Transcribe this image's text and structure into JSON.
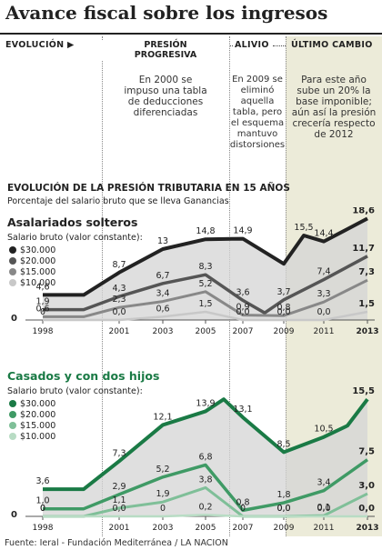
{
  "title": "Avance fiscal sobre los ingresos",
  "header": {
    "evolucion": "EVOLUCIÓN",
    "presion": "PRESIÓN\nPROGRESIVA",
    "alivio": "ALIVIO",
    "ultimo": "ÚLTIMO CAMBIO",
    "note_2000": "En 2000 se\nimpuso una tabla\nde deducciones\ndiferenciadas",
    "note_2009": "En 2009 se\neliminó aquella\ntabla, pero\nel esquema\nmantuvo\ndistorsiones",
    "note_2013": "Para este año\nsube un 20% la\nbase imponible;\naún así la presión\ncrecería respecto\nde 2012"
  },
  "section_title": "EVOLUCIÓN DE LA PRESIÓN TRIBUTARIA EN 15 AÑOS",
  "section_subtitle": "Porcentaje del salario bruto que se lleva Ganancias",
  "footer": "Fuente: Ieral - Fundación Mediterránea / LA NACION",
  "colors": {
    "black": "#222222",
    "dark_gray": "#555555",
    "mid_gray": "#888888",
    "light_gray": "#c8c8c8",
    "dark_green": "#1a7a45",
    "mid_green": "#3f9a65",
    "light_green": "#7fbf98",
    "pale_green": "#b8dcc4",
    "band_highlight": "#ecebd9",
    "area_fill": "#d4d4d4"
  },
  "chart_data": [
    {
      "type": "line",
      "title": "Asalariados solteros",
      "legend_title": "Salario bruto (valor constante):",
      "x": [
        1998,
        1999,
        2001,
        2003,
        2005,
        2007,
        2009,
        2011,
        2013
      ],
      "x_tick_labels": [
        "1998",
        "2001",
        "2003",
        "2005",
        "2007",
        "2009",
        "2011",
        "2013"
      ],
      "y_axis_label": "0",
      "ylim": [
        0,
        19
      ],
      "series": [
        {
          "name": "$30.000",
          "color": "#222222",
          "values": [
            4.6,
            4.6,
            8.7,
            13.0,
            14.8,
            14.9,
            10.3,
            15.5,
            14.4,
            18.6
          ],
          "x": [
            1998,
            1999,
            2001,
            2003,
            2005,
            2007,
            2009,
            2010,
            2011,
            2013
          ],
          "labels": [
            "4,6",
            "",
            "8,7",
            "13",
            "14,8",
            "14,9",
            "",
            "15,5",
            "14,4",
            "18,6"
          ]
        },
        {
          "name": "$20.000",
          "color": "#555555",
          "values": [
            1.9,
            1.9,
            4.3,
            6.7,
            8.3,
            3.6,
            1.3,
            3.7,
            7.4,
            11.7
          ],
          "x": [
            1998,
            1999,
            2001,
            2003,
            2005,
            2007,
            2008,
            2009,
            2011,
            2013
          ],
          "labels": [
            "1,9",
            "",
            "4,3",
            "6,7",
            "8,3",
            "3,6",
            "",
            "3,7",
            "7,4",
            "11,7"
          ]
        },
        {
          "name": "$15.000",
          "color": "#888888",
          "values": [
            0.6,
            0.6,
            2.3,
            3.4,
            5.2,
            0.9,
            0.8,
            3.3,
            7.3
          ],
          "x": [
            1998,
            1999,
            2001,
            2003,
            2005,
            2007,
            2009,
            2011,
            2013
          ],
          "labels": [
            "0,6",
            "",
            "2,3",
            "3,4",
            "5,2",
            "0,9",
            "0,8",
            "3,3",
            "7,3"
          ]
        },
        {
          "name": "$10.000",
          "color": "#c8c8c8",
          "values": [
            0,
            0,
            0.0,
            0.6,
            1.5,
            0.0,
            0.0,
            0.0,
            1.5
          ],
          "x": [
            1998,
            1999,
            2001,
            2003,
            2005,
            2007,
            2009,
            2011,
            2013
          ],
          "labels": [
            "0",
            "",
            "0,0",
            "0,6",
            "1,5",
            "0,0",
            "0,0",
            "0,0",
            "1,5"
          ]
        }
      ]
    },
    {
      "type": "line",
      "title": "Casados y con dos hijos",
      "legend_title": "Salario bruto (valor constante):",
      "x": [
        1998,
        1999,
        2001,
        2003,
        2005,
        2007,
        2009,
        2011,
        2013
      ],
      "x_tick_labels": [
        "1998",
        "2001",
        "2003",
        "2005",
        "2007",
        "2009",
        "2011",
        "2013"
      ],
      "y_axis_label": "0",
      "ylim": [
        0,
        16
      ],
      "series": [
        {
          "name": "$30.000",
          "color": "#1a7a45",
          "values": [
            3.6,
            3.6,
            7.3,
            12.1,
            13.9,
            15.5,
            13.1,
            8.5,
            10.5,
            12.0,
            15.5
          ],
          "x": [
            1998,
            1999,
            2001,
            2003,
            2005,
            2006,
            2007,
            2009,
            2011,
            2012,
            2013
          ],
          "labels": [
            "3,6",
            "",
            "7,3",
            "12,1",
            "13,9",
            "",
            "13,1",
            "8,5",
            "10,5",
            "",
            "15,5"
          ]
        },
        {
          "name": "$20.000",
          "color": "#3f9a65",
          "values": [
            1.0,
            1.0,
            2.9,
            5.2,
            6.8,
            0.8,
            1.8,
            3.4,
            7.5
          ],
          "x": [
            1998,
            1999,
            2001,
            2003,
            2005,
            2007,
            2009,
            2011,
            2013
          ],
          "labels": [
            "1,0",
            "",
            "2,9",
            "5,2",
            "6,8",
            "0,8",
            "1,8",
            "3,4",
            "7,5"
          ]
        },
        {
          "name": "$15.000",
          "color": "#7fbf98",
          "values": [
            0,
            0,
            1.1,
            1.9,
            3.8,
            0,
            0.0,
            0.1,
            3.0
          ],
          "x": [
            1998,
            1999,
            2001,
            2003,
            2005,
            2007,
            2009,
            2011,
            2013
          ],
          "labels": [
            "0",
            "",
            "1,1",
            "1,9",
            "3,8",
            "0",
            "0,0",
            "0,1",
            "3,0"
          ]
        },
        {
          "name": "$10.000",
          "color": "#b8dcc4",
          "values": [
            0,
            0,
            0.0,
            0,
            0.2,
            0,
            0.0,
            0.0,
            0.0
          ],
          "x": [
            1998,
            1999,
            2001,
            2003,
            2005,
            2007,
            2009,
            2011,
            2013
          ],
          "labels": [
            "0",
            "",
            "0,0",
            "0",
            "0,2",
            "",
            "0,0",
            "0,0",
            "0,0"
          ]
        }
      ]
    }
  ]
}
